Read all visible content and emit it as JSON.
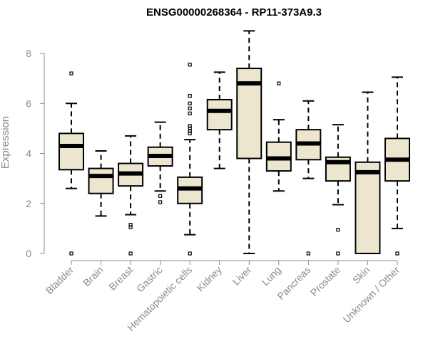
{
  "chart_data": {
    "type": "boxplot",
    "title": "ENSG00000268364 - RP11-373A9.3",
    "xlabel": "",
    "ylabel": "Expression",
    "ylim": [
      0,
      8
    ],
    "yticks": [
      0,
      2,
      4,
      6,
      8
    ],
    "grid": false,
    "colors": {
      "box_fill": "#ede6ce",
      "box_stroke": "#000000",
      "axis": "#8a8a8a",
      "text": "#8a8a8a",
      "title": "#000000"
    },
    "categories": [
      "Bladder",
      "Brain",
      "Breast",
      "Gastric",
      "Hematopoietic cells",
      "Kidney",
      "Liver",
      "Lung",
      "Pancreas",
      "Prostate",
      "Skin",
      "Unknown / Other"
    ],
    "boxes": [
      {
        "category": "Bladder",
        "whisker_low": 2.6,
        "q1": 3.35,
        "median": 4.3,
        "q3": 4.8,
        "whisker_high": 6.0,
        "outliers": [
          0,
          7.2
        ]
      },
      {
        "category": "Brain",
        "whisker_low": 1.5,
        "q1": 2.4,
        "median": 3.1,
        "q3": 3.4,
        "whisker_high": 4.1,
        "outliers": []
      },
      {
        "category": "Breast",
        "whisker_low": 1.55,
        "q1": 2.7,
        "median": 3.2,
        "q3": 3.6,
        "whisker_high": 4.7,
        "outliers": [
          0,
          1.05,
          1.15
        ]
      },
      {
        "category": "Gastric",
        "whisker_low": 2.5,
        "q1": 3.5,
        "median": 3.9,
        "q3": 4.25,
        "whisker_high": 5.25,
        "outliers": [
          2.05,
          2.3
        ]
      },
      {
        "category": "Hematopoietic cells",
        "whisker_low": 0.75,
        "q1": 2.0,
        "median": 2.6,
        "q3": 3.05,
        "whisker_high": 4.55,
        "outliers": [
          0,
          4.8,
          4.9,
          5.0,
          5.1,
          5.6,
          5.8,
          6.0,
          6.3,
          7.55
        ]
      },
      {
        "category": "Kidney",
        "whisker_low": 3.4,
        "q1": 4.95,
        "median": 5.7,
        "q3": 6.15,
        "whisker_high": 7.25,
        "outliers": []
      },
      {
        "category": "Liver",
        "whisker_low": 0.0,
        "q1": 3.8,
        "median": 6.8,
        "q3": 7.4,
        "whisker_high": 8.9,
        "outliers": []
      },
      {
        "category": "Lung",
        "whisker_low": 2.5,
        "q1": 3.3,
        "median": 3.8,
        "q3": 4.45,
        "whisker_high": 5.35,
        "outliers": [
          6.8
        ]
      },
      {
        "category": "Pancreas",
        "whisker_low": 3.0,
        "q1": 3.75,
        "median": 4.4,
        "q3": 4.95,
        "whisker_high": 6.1,
        "outliers": [
          0
        ]
      },
      {
        "category": "Prostate",
        "whisker_low": 1.95,
        "q1": 2.9,
        "median": 3.65,
        "q3": 3.85,
        "whisker_high": 5.15,
        "outliers": [
          0,
          0.95
        ]
      },
      {
        "category": "Skin",
        "whisker_low": 0.0,
        "q1": 0.0,
        "median": 3.25,
        "q3": 3.65,
        "whisker_high": 6.45,
        "outliers": []
      },
      {
        "category": "Unknown / Other",
        "whisker_low": 1.0,
        "q1": 2.9,
        "median": 3.75,
        "q3": 4.6,
        "whisker_high": 7.05,
        "outliers": [
          0
        ]
      }
    ]
  }
}
